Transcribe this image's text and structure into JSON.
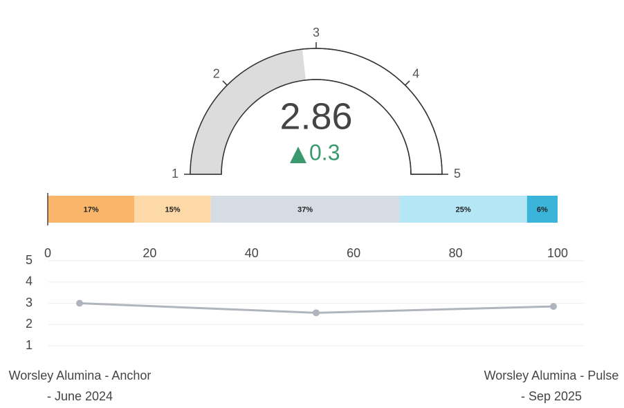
{
  "chart_data": [
    {
      "type": "gauge",
      "value": 2.86,
      "delta": 0.3,
      "ylim": [
        1,
        5
      ],
      "yticks": [
        1,
        2,
        3,
        4,
        5
      ],
      "color": "#dcdcdc",
      "delta_color": "#3a9a6e"
    },
    {
      "type": "stacked_bar",
      "xlim": [
        0,
        100
      ],
      "xticks": [
        0,
        20,
        40,
        60,
        80,
        100
      ],
      "series": [
        {
          "color": "#f9b56a",
          "values": [
            17
          ],
          "value_labels": [
            "17%"
          ]
        },
        {
          "color": "#fdd9a8",
          "values": [
            15
          ],
          "value_labels": [
            "15%"
          ]
        },
        {
          "color": "#d6dce4",
          "values": [
            37
          ],
          "value_labels": [
            "37%"
          ]
        },
        {
          "color": "#b4e6f5",
          "values": [
            25
          ],
          "value_labels": [
            "25%"
          ]
        },
        {
          "color": "#3bb4d9",
          "values": [
            6
          ],
          "value_labels": [
            "6%"
          ]
        }
      ]
    },
    {
      "type": "line",
      "categories": [
        "Worsley Alumina - Anchor - June 2024",
        null,
        "Worsley Alumina - Pulse - Sep 2025"
      ],
      "values": [
        3.0,
        2.55,
        2.85
      ],
      "color": "#b0b5bd",
      "ylim": [
        1,
        5
      ],
      "yticks": [
        1,
        2,
        3,
        4,
        5
      ],
      "grid": true
    }
  ]
}
